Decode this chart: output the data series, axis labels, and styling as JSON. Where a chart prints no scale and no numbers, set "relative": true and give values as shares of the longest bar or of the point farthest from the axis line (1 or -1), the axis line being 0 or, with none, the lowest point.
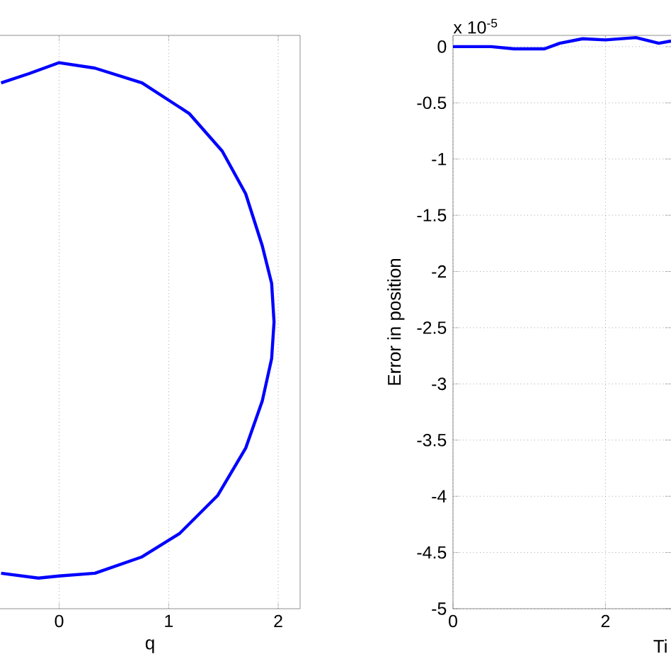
{
  "chart_data": [
    {
      "type": "line",
      "xlabel": "q",
      "relative": true,
      "color": "#0000ff",
      "xlim": [
        -0.54,
        2.2
      ],
      "xticks": [
        0,
        1,
        2
      ],
      "grid": "x",
      "tick_labels": "x",
      "x": [
        -0.53,
        -0.275,
        0,
        0.327,
        0.757,
        1.187,
        1.489,
        1.703,
        1.854,
        1.94,
        1.962,
        1.94,
        1.854,
        1.703,
        1.446,
        1.101,
        0.757,
        0.327,
        0,
        -0.189,
        -0.53
      ],
      "values": [
        0.963,
        0.98,
        1.0,
        0.99,
        0.963,
        0.907,
        0.838,
        0.76,
        0.665,
        0.596,
        0.525,
        0.458,
        0.38,
        0.294,
        0.207,
        0.138,
        0.095,
        0.065,
        0.06,
        0.056,
        0.065
      ]
    },
    {
      "type": "line",
      "xlabel": "Ti",
      "ylabel": "Error in position",
      "color": "#0000ff",
      "xlim": [
        0,
        2.86
      ],
      "ylim": [
        -5,
        0.1
      ],
      "xticks": [
        0,
        2
      ],
      "yticks": [
        -5,
        -4.5,
        -4,
        -3.5,
        -3,
        -2.5,
        -2,
        -1.5,
        -1,
        -0.5,
        0
      ],
      "grid": true,
      "annotations": [
        "x 10$^{-5}$"
      ],
      "x": [
        0,
        0.5,
        0.8,
        1.2,
        1.4,
        1.7,
        2.0,
        2.4,
        2.7,
        2.86
      ],
      "values": [
        0,
        0,
        -0.02,
        -0.02,
        0.03,
        0.07,
        0.06,
        0.08,
        0.03,
        0.05
      ]
    }
  ]
}
